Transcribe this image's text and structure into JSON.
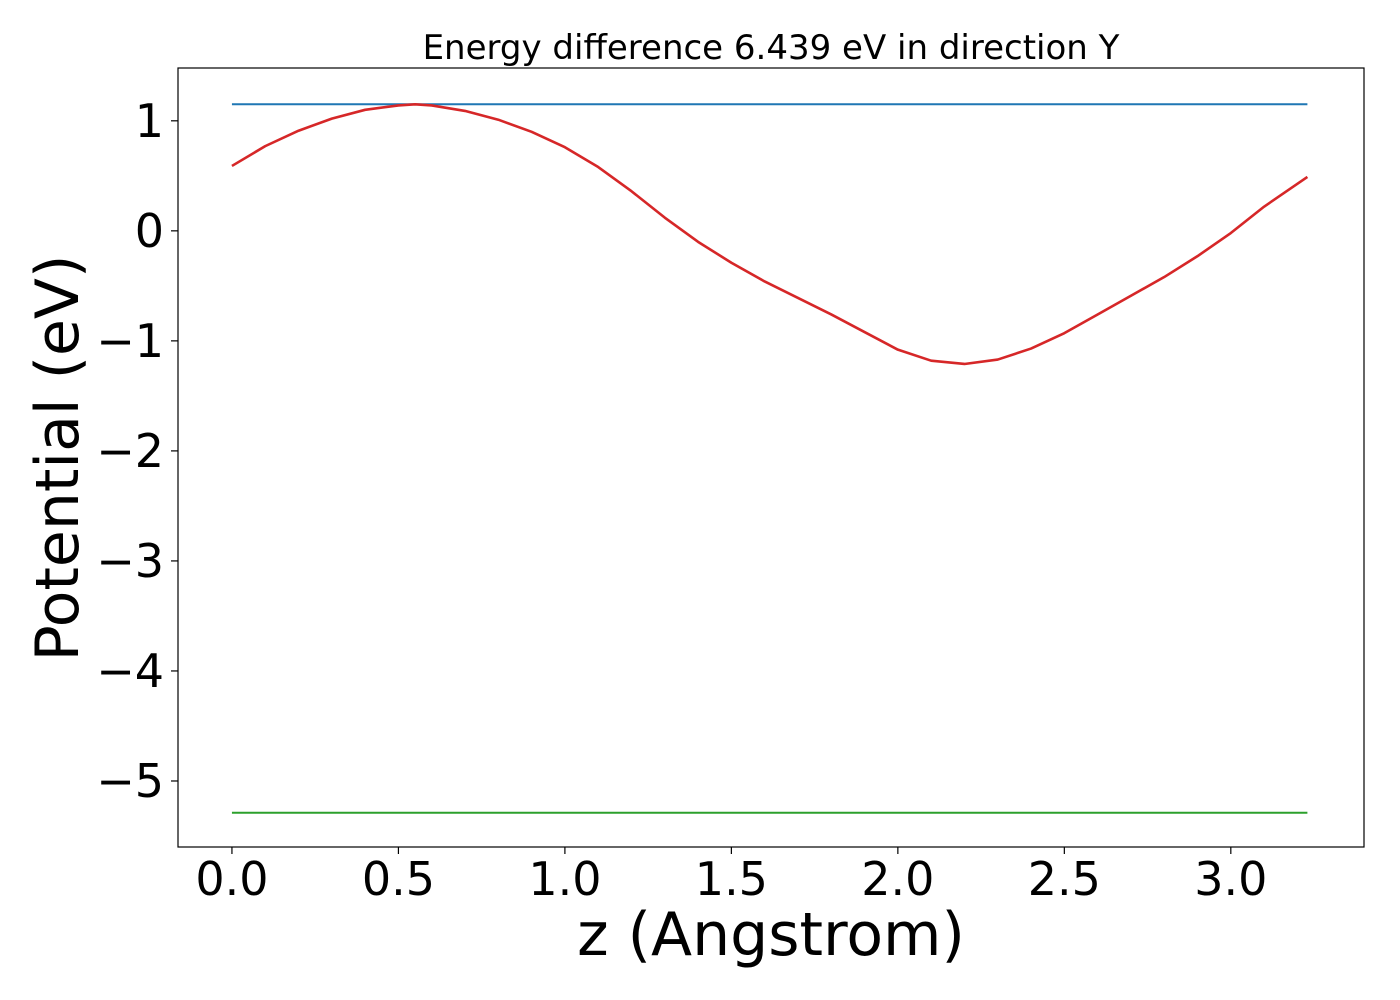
{
  "chart_data": {
    "type": "line",
    "title": "Energy difference 6.439 eV in direction Y",
    "xlabel": "z (Angstrom)",
    "ylabel": "Potential (eV)",
    "xlim": [
      -0.162,
      3.4
    ],
    "ylim": [
      -5.6,
      1.48
    ],
    "grid": false,
    "legend": "none",
    "xticks": [
      {
        "value": 0.0,
        "label": "0.0"
      },
      {
        "value": 0.5,
        "label": "0.5"
      },
      {
        "value": 1.0,
        "label": "1.0"
      },
      {
        "value": 1.5,
        "label": "1.5"
      },
      {
        "value": 2.0,
        "label": "2.0"
      },
      {
        "value": 2.5,
        "label": "2.5"
      },
      {
        "value": 3.0,
        "label": "3.0"
      }
    ],
    "yticks": [
      {
        "value": 1,
        "label": "1"
      },
      {
        "value": 0,
        "label": "0"
      },
      {
        "value": -1,
        "label": "−1"
      },
      {
        "value": -2,
        "label": "−2"
      },
      {
        "value": -3,
        "label": "−3"
      },
      {
        "value": -4,
        "label": "−4"
      },
      {
        "value": -5,
        "label": "−5"
      }
    ],
    "series": [
      {
        "color": "#d62728",
        "x": [
          0.0,
          0.1,
          0.2,
          0.3,
          0.4,
          0.5,
          0.55,
          0.6,
          0.7,
          0.8,
          0.9,
          1.0,
          1.1,
          1.2,
          1.3,
          1.4,
          1.5,
          1.6,
          1.7,
          1.8,
          1.9,
          2.0,
          2.1,
          2.2,
          2.3,
          2.4,
          2.5,
          2.6,
          2.7,
          2.8,
          2.9,
          3.0,
          3.1,
          3.23
        ],
        "y": [
          0.59,
          0.77,
          0.91,
          1.02,
          1.1,
          1.14,
          1.15,
          1.14,
          1.09,
          1.01,
          0.9,
          0.76,
          0.58,
          0.36,
          0.12,
          -0.1,
          -0.29,
          -0.46,
          -0.61,
          -0.76,
          -0.92,
          -1.08,
          -1.18,
          -1.21,
          -1.17,
          -1.07,
          -0.93,
          -0.76,
          -0.59,
          -0.42,
          -0.23,
          -0.02,
          0.22,
          0.49
        ]
      },
      {
        "color": "#1f77b4",
        "x": [
          0.0,
          3.23
        ],
        "y": [
          1.15,
          1.15
        ]
      },
      {
        "color": "#2ca02c",
        "x": [
          0.0,
          3.23
        ],
        "y": [
          -5.289,
          -5.289
        ]
      }
    ]
  }
}
